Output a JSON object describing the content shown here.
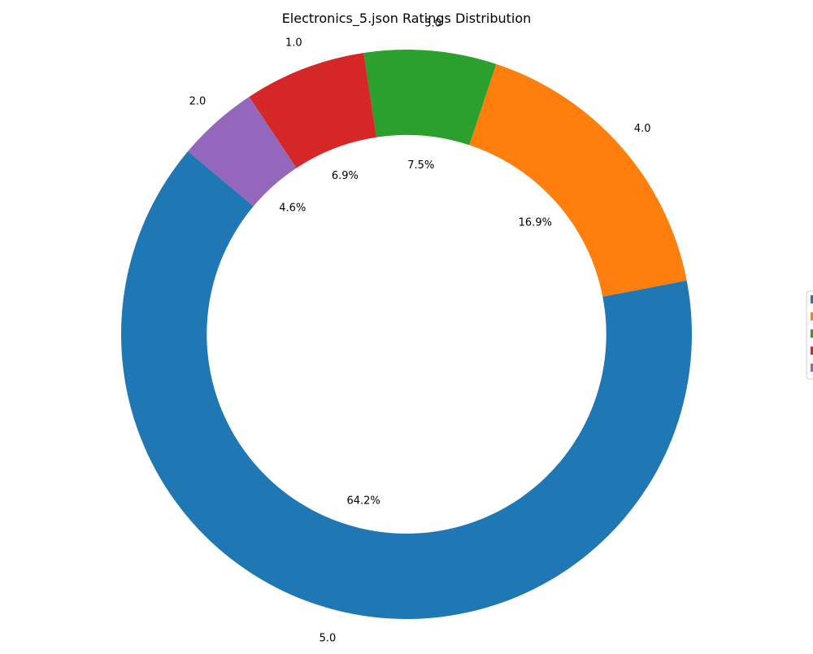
{
  "chart_data": {
    "type": "pie",
    "variant": "donut",
    "title": "Electronics_5.json Ratings Distribution",
    "categories": [
      "5.0",
      "4.0",
      "3.0",
      "1.0",
      "2.0"
    ],
    "values": [
      64.2,
      16.9,
      7.5,
      6.9,
      4.6
    ],
    "value_labels": [
      "64.2%",
      "16.9%",
      "7.5%",
      "6.9%",
      "4.6%"
    ],
    "colors": [
      "#1f77b4",
      "#ff7f0e",
      "#2ca02c",
      "#d62728",
      "#9467bd"
    ],
    "start_angle_deg": 140,
    "direction": "counterclockwise",
    "legend": {
      "placement": "center-right",
      "entries_visible": false
    }
  }
}
